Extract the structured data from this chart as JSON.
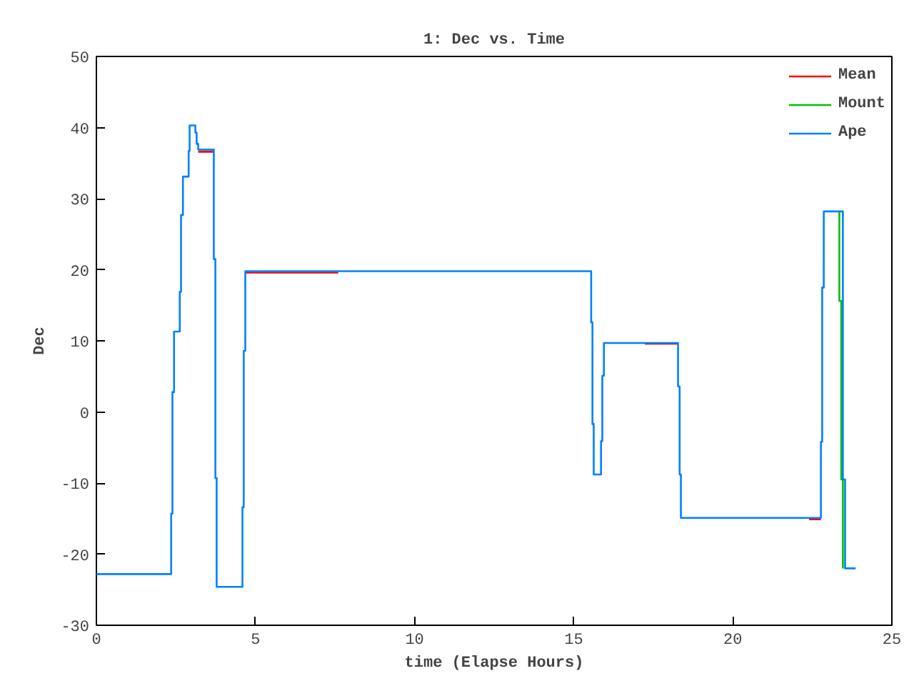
{
  "chart_data": {
    "type": "line",
    "title": "1: Dec vs. Time",
    "xlabel": "time (Elapse Hours)",
    "ylabel": "Dec",
    "xlim": [
      0,
      25
    ],
    "ylim": [
      -30,
      50
    ],
    "xticks": [
      0,
      5,
      10,
      15,
      20,
      25
    ],
    "yticks": [
      -30,
      -20,
      -10,
      0,
      10,
      20,
      30,
      40,
      50
    ],
    "grid": false,
    "legend": "top right",
    "marker": "none",
    "line_style": "solid",
    "series": [
      {
        "name": "Mean",
        "color": "#ff0000",
        "x": [
          3.2,
          3.69,
          null,
          4.68,
          7.6,
          null,
          17.24,
          18.28,
          null,
          22.4,
          22.77
        ],
        "values": [
          36.6,
          36.6,
          null,
          19.6,
          19.6,
          null,
          9.6,
          9.6,
          null,
          -15.1,
          -15.1
        ]
      },
      {
        "name": "Mount",
        "color": "#00c000",
        "x": [
          23.35,
          23.35,
          23.41,
          23.41,
          23.46,
          23.46
        ],
        "values": [
          28.2,
          15.6,
          15.6,
          -9.5,
          -9.5,
          -22.0
        ]
      },
      {
        "name": "Ape",
        "color": "#0080ff",
        "x": [
          0,
          2.35,
          2.35,
          2.39,
          2.39,
          2.44,
          2.44,
          2.62,
          2.62,
          2.66,
          2.66,
          2.72,
          2.72,
          2.9,
          2.9,
          2.93,
          2.93,
          3.11,
          3.11,
          3.15,
          3.15,
          3.2,
          3.2,
          3.69,
          3.69,
          3.74,
          3.74,
          3.78,
          3.78,
          4.59,
          4.59,
          4.63,
          4.63,
          4.68,
          4.68,
          15.55,
          15.55,
          15.59,
          15.59,
          15.63,
          15.63,
          15.86,
          15.86,
          15.9,
          15.9,
          15.95,
          15.95,
          18.28,
          18.28,
          18.33,
          18.33,
          18.37,
          18.37,
          22.77,
          22.77,
          22.81,
          22.81,
          22.86,
          22.86,
          23.46,
          23.46,
          23.53,
          23.53,
          23.86
        ],
        "values": [
          -22.8,
          -22.8,
          -14.3,
          -14.3,
          2.8,
          2.8,
          11.3,
          11.3,
          16.9,
          16.9,
          27.7,
          27.7,
          33.1,
          33.1,
          36.7,
          36.7,
          40.3,
          40.3,
          39.3,
          39.3,
          37.7,
          37.7,
          36.9,
          36.9,
          21.5,
          21.5,
          -9.3,
          -9.3,
          -24.6,
          -24.6,
          -13.4,
          -13.4,
          8.6,
          8.6,
          19.8,
          19.8,
          12.6,
          12.6,
          -1.7,
          -1.7,
          -8.8,
          -8.8,
          -4.1,
          -4.1,
          5.1,
          5.1,
          9.7,
          9.7,
          3.6,
          3.6,
          -8.8,
          -8.8,
          -14.9,
          -14.9,
          -4.2,
          -4.2,
          17.5,
          17.5,
          28.2,
          28.2,
          -9.5,
          -9.5,
          -22.0,
          -22.0
        ]
      }
    ]
  }
}
